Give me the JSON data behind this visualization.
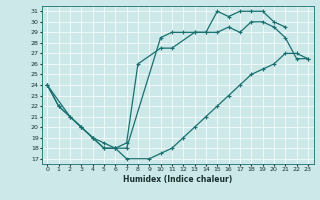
{
  "xlabel": "Humidex (Indice chaleur)",
  "bg_color": "#cce8e8",
  "grid_color": "#ffffff",
  "line_color": "#1a7070",
  "xlim": [
    -0.5,
    23.5
  ],
  "ylim": [
    16.5,
    31.5
  ],
  "yticks": [
    17,
    18,
    19,
    20,
    21,
    22,
    23,
    24,
    25,
    26,
    27,
    28,
    29,
    30,
    31
  ],
  "xticks": [
    0,
    1,
    2,
    3,
    4,
    5,
    6,
    7,
    8,
    9,
    10,
    11,
    12,
    13,
    14,
    15,
    16,
    17,
    18,
    19,
    20,
    21,
    22,
    23
  ],
  "line1_x": [
    0,
    1,
    3,
    4,
    5,
    6,
    7,
    8,
    10,
    11,
    13,
    14,
    15,
    16,
    17,
    18,
    19,
    20,
    21
  ],
  "line1_y": [
    24,
    22,
    20,
    19,
    18,
    18,
    18.5,
    26,
    27.5,
    27.5,
    29,
    29,
    31,
    30.5,
    31,
    31,
    31,
    30,
    29.5
  ],
  "line2_x": [
    0,
    1,
    2,
    3,
    4,
    5,
    6,
    7,
    10,
    11,
    12,
    13,
    14,
    15,
    16,
    17,
    18,
    19,
    20,
    21,
    22,
    23
  ],
  "line2_y": [
    24,
    22,
    21,
    20,
    19,
    18,
    18,
    18,
    28.5,
    29,
    29,
    29,
    29,
    29,
    29.5,
    29,
    30,
    30,
    29.5,
    28.5,
    26.5,
    26.5
  ],
  "line3_x": [
    0,
    2,
    3,
    4,
    5,
    6,
    7,
    9,
    10,
    11,
    12,
    13,
    14,
    15,
    16,
    17,
    18,
    19,
    20,
    21,
    22,
    23
  ],
  "line3_y": [
    24,
    21,
    20,
    19,
    18.5,
    18,
    17,
    17,
    17.5,
    18,
    19,
    20,
    21,
    22,
    23,
    24,
    25,
    25.5,
    26,
    27,
    27,
    26.5
  ]
}
